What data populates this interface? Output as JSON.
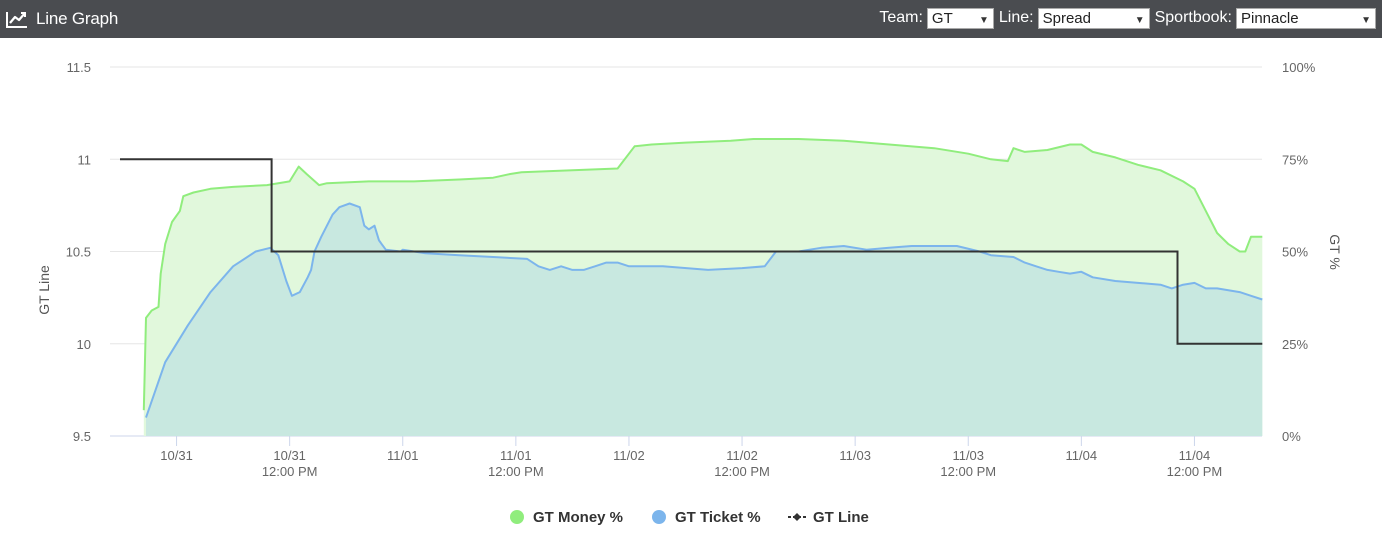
{
  "header": {
    "title": "Line Graph",
    "team_label": "Team:",
    "team_value": "GT",
    "line_label": "Line:",
    "line_value": "Spread",
    "sportsbook_label": "Sportbook:",
    "sportsbook_value": "Pinnacle"
  },
  "chart_data": {
    "type": "line",
    "left_axis": {
      "title": "GT Line",
      "min": 9.5,
      "max": 11.5,
      "ticks": [
        "11.5",
        "11",
        "10.5",
        "10",
        "9.5"
      ]
    },
    "right_axis": {
      "title": "GT %",
      "min": 0,
      "max": 100,
      "ticks": [
        "100%",
        "75%",
        "50%",
        "25%",
        "0%"
      ]
    },
    "x_axis": {
      "min": 0,
      "max": 100,
      "ticks": [
        {
          "x": 5,
          "line1": "10/31",
          "line2": ""
        },
        {
          "x": 15,
          "line1": "10/31",
          "line2": "12:00 PM"
        },
        {
          "x": 25,
          "line1": "11/01",
          "line2": ""
        },
        {
          "x": 35,
          "line1": "11/01",
          "line2": "12:00 PM"
        },
        {
          "x": 45,
          "line1": "11/02",
          "line2": ""
        },
        {
          "x": 55,
          "line1": "11/02",
          "line2": "12:00 PM"
        },
        {
          "x": 65,
          "line1": "11/03",
          "line2": ""
        },
        {
          "x": 75,
          "line1": "11/03",
          "line2": "12:00 PM"
        },
        {
          "x": 85,
          "line1": "11/04",
          "line2": ""
        },
        {
          "x": 95,
          "line1": "11/04",
          "line2": "12:00 PM"
        }
      ]
    },
    "grid": true,
    "legend_position": "bottom-center",
    "series": [
      {
        "name": "GT Money %",
        "axis": "right",
        "type": "area",
        "color": "#90ed7d",
        "fill": "#e1f8dc",
        "points": [
          [
            2.1,
            7
          ],
          [
            2.3,
            32
          ],
          [
            2.8,
            34
          ],
          [
            3.4,
            35
          ],
          [
            3.6,
            44
          ],
          [
            4.0,
            52
          ],
          [
            4.6,
            58
          ],
          [
            5.3,
            61
          ],
          [
            5.6,
            65
          ],
          [
            6.5,
            66
          ],
          [
            8,
            67
          ],
          [
            10,
            67.5
          ],
          [
            13,
            68
          ],
          [
            15,
            69
          ],
          [
            15.8,
            73
          ],
          [
            16.5,
            71
          ],
          [
            17.6,
            68
          ],
          [
            18.3,
            68.5
          ],
          [
            22,
            69
          ],
          [
            26,
            69
          ],
          [
            30,
            69.5
          ],
          [
            33,
            70
          ],
          [
            34.5,
            71
          ],
          [
            35.5,
            71.5
          ],
          [
            40,
            72
          ],
          [
            44,
            72.5
          ],
          [
            45.5,
            78.5
          ],
          [
            47,
            79
          ],
          [
            50,
            79.5
          ],
          [
            54,
            80
          ],
          [
            56,
            80.5
          ],
          [
            60,
            80.5
          ],
          [
            64,
            80
          ],
          [
            68,
            79
          ],
          [
            72,
            78
          ],
          [
            75,
            76.5
          ],
          [
            77,
            75
          ],
          [
            78.5,
            74.5
          ],
          [
            79,
            78
          ],
          [
            80,
            77
          ],
          [
            82,
            77.5
          ],
          [
            84,
            79
          ],
          [
            85,
            79
          ],
          [
            86,
            77
          ],
          [
            88,
            75.5
          ],
          [
            90,
            73.5
          ],
          [
            92,
            72
          ],
          [
            94,
            69
          ],
          [
            95,
            67
          ],
          [
            96,
            61
          ],
          [
            97,
            55
          ],
          [
            98,
            52
          ],
          [
            99,
            50
          ],
          [
            99.5,
            50
          ],
          [
            100,
            54
          ],
          [
            101,
            54
          ]
        ]
      },
      {
        "name": "GT Ticket %",
        "axis": "right",
        "type": "area",
        "color": "#7cb5ec",
        "fill": "#c8e8e0",
        "points": [
          [
            2.3,
            5
          ],
          [
            4,
            20
          ],
          [
            6,
            30
          ],
          [
            8,
            39
          ],
          [
            10,
            46
          ],
          [
            12,
            50
          ],
          [
            13.3,
            51
          ],
          [
            14,
            49
          ],
          [
            14.7,
            42
          ],
          [
            15.2,
            38
          ],
          [
            15.9,
            39
          ],
          [
            16.6,
            43
          ],
          [
            16.9,
            45
          ],
          [
            17.2,
            50
          ],
          [
            17.8,
            54
          ],
          [
            18.8,
            60
          ],
          [
            19.4,
            62
          ],
          [
            20.3,
            63
          ],
          [
            21.2,
            62
          ],
          [
            21.6,
            57
          ],
          [
            22,
            56
          ],
          [
            22.5,
            57
          ],
          [
            22.9,
            53
          ],
          [
            23.5,
            50.5
          ],
          [
            24.8,
            50
          ],
          [
            25,
            50.5
          ],
          [
            27,
            49.5
          ],
          [
            30,
            49
          ],
          [
            33,
            48.5
          ],
          [
            36,
            48
          ],
          [
            37,
            46
          ],
          [
            38,
            45
          ],
          [
            39,
            46
          ],
          [
            40,
            45
          ],
          [
            41,
            45
          ],
          [
            42,
            46
          ],
          [
            43,
            47
          ],
          [
            44,
            47
          ],
          [
            45,
            46
          ],
          [
            48,
            46
          ],
          [
            52,
            45
          ],
          [
            55,
            45.5
          ],
          [
            57,
            46
          ],
          [
            58,
            50
          ],
          [
            60,
            50
          ],
          [
            62,
            51
          ],
          [
            64,
            51.5
          ],
          [
            66,
            50.5
          ],
          [
            68,
            51
          ],
          [
            70,
            51.5
          ],
          [
            72,
            51.5
          ],
          [
            74,
            51.5
          ],
          [
            76,
            50
          ],
          [
            77,
            49
          ],
          [
            79,
            48.5
          ],
          [
            80,
            47
          ],
          [
            81,
            46
          ],
          [
            82,
            45
          ],
          [
            83,
            44.5
          ],
          [
            84,
            44
          ],
          [
            85,
            44.5
          ],
          [
            86,
            43
          ],
          [
            88,
            42
          ],
          [
            90,
            41.5
          ],
          [
            92,
            41
          ],
          [
            93,
            40
          ],
          [
            94,
            41
          ],
          [
            95,
            41.5
          ],
          [
            96,
            40
          ],
          [
            97,
            40
          ],
          [
            98,
            39.5
          ],
          [
            99,
            39
          ],
          [
            100,
            38
          ],
          [
            101,
            37
          ]
        ]
      },
      {
        "name": "GT Line",
        "axis": "left",
        "type": "step",
        "color": "#333333",
        "points": [
          [
            0,
            11
          ],
          [
            13.4,
            11
          ],
          [
            13.4,
            10.5
          ],
          [
            93.5,
            10.5
          ],
          [
            93.5,
            10.0
          ],
          [
            101,
            10.0
          ]
        ]
      }
    ]
  }
}
